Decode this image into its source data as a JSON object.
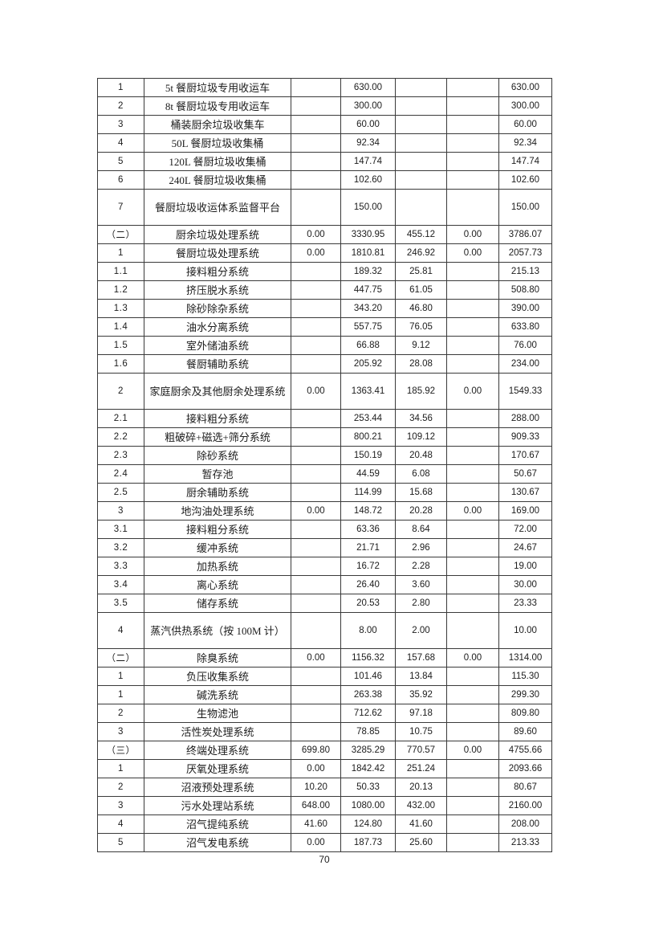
{
  "page_number": "70",
  "table": {
    "description": "cost-breakdown-table-continuation",
    "border_color": "#3a3a3a",
    "columns": [
      "no",
      "name",
      "v1",
      "v2",
      "v3",
      "v4",
      "v5"
    ],
    "rows": [
      {
        "no": "1",
        "name": "5t 餐厨垃圾专用收运车",
        "v": [
          "",
          "630.00",
          "",
          "",
          "630.00"
        ],
        "tall": false
      },
      {
        "no": "2",
        "name": "8t 餐厨垃圾专用收运车",
        "v": [
          "",
          "300.00",
          "",
          "",
          "300.00"
        ],
        "tall": false
      },
      {
        "no": "3",
        "name": "桶装厨余垃圾收集车",
        "v": [
          "",
          "60.00",
          "",
          "",
          "60.00"
        ],
        "tall": false
      },
      {
        "no": "4",
        "name": "50L 餐厨垃圾收集桶",
        "v": [
          "",
          "92.34",
          "",
          "",
          "92.34"
        ],
        "tall": false
      },
      {
        "no": "5",
        "name": "120L 餐厨垃圾收集桶",
        "v": [
          "",
          "147.74",
          "",
          "",
          "147.74"
        ],
        "tall": false
      },
      {
        "no": "6",
        "name": "240L 餐厨垃圾收集桶",
        "v": [
          "",
          "102.60",
          "",
          "",
          "102.60"
        ],
        "tall": false
      },
      {
        "no": "7",
        "name": "餐厨垃圾收运体系监督平台",
        "v": [
          "",
          "150.00",
          "",
          "",
          "150.00"
        ],
        "tall": true
      },
      {
        "no": "（二）",
        "name": "厨余垃圾处理系统",
        "v": [
          "0.00",
          "3330.95",
          "455.12",
          "0.00",
          "3786.07"
        ],
        "tall": false
      },
      {
        "no": "1",
        "name": "餐厨垃圾处理系统",
        "v": [
          "0.00",
          "1810.81",
          "246.92",
          "0.00",
          "2057.73"
        ],
        "tall": false
      },
      {
        "no": "1.1",
        "name": "接料粗分系统",
        "v": [
          "",
          "189.32",
          "25.81",
          "",
          "215.13"
        ],
        "tall": false
      },
      {
        "no": "1.2",
        "name": "挤压脱水系统",
        "v": [
          "",
          "447.75",
          "61.05",
          "",
          "508.80"
        ],
        "tall": false
      },
      {
        "no": "1.3",
        "name": "除砂除杂系统",
        "v": [
          "",
          "343.20",
          "46.80",
          "",
          "390.00"
        ],
        "tall": false
      },
      {
        "no": "1.4",
        "name": "油水分离系统",
        "v": [
          "",
          "557.75",
          "76.05",
          "",
          "633.80"
        ],
        "tall": false
      },
      {
        "no": "1.5",
        "name": "室外储油系统",
        "v": [
          "",
          "66.88",
          "9.12",
          "",
          "76.00"
        ],
        "tall": false
      },
      {
        "no": "1.6",
        "name": "餐厨辅助系统",
        "v": [
          "",
          "205.92",
          "28.08",
          "",
          "234.00"
        ],
        "tall": false
      },
      {
        "no": "2",
        "name": "家庭厨余及其他厨余处理系统",
        "v": [
          "0.00",
          "1363.41",
          "185.92",
          "0.00",
          "1549.33"
        ],
        "tall": true
      },
      {
        "no": "2.1",
        "name": "接料粗分系统",
        "v": [
          "",
          "253.44",
          "34.56",
          "",
          "288.00"
        ],
        "tall": false
      },
      {
        "no": "2.2",
        "name": "粗破碎+磁选+筛分系统",
        "v": [
          "",
          "800.21",
          "109.12",
          "",
          "909.33"
        ],
        "tall": false
      },
      {
        "no": "2.3",
        "name": "除砂系统",
        "v": [
          "",
          "150.19",
          "20.48",
          "",
          "170.67"
        ],
        "tall": false
      },
      {
        "no": "2.4",
        "name": "暂存池",
        "v": [
          "",
          "44.59",
          "6.08",
          "",
          "50.67"
        ],
        "tall": false
      },
      {
        "no": "2.5",
        "name": "厨余辅助系统",
        "v": [
          "",
          "114.99",
          "15.68",
          "",
          "130.67"
        ],
        "tall": false
      },
      {
        "no": "3",
        "name": "地沟油处理系统",
        "v": [
          "0.00",
          "148.72",
          "20.28",
          "0.00",
          "169.00"
        ],
        "tall": false
      },
      {
        "no": "3.1",
        "name": "接料粗分系统",
        "v": [
          "",
          "63.36",
          "8.64",
          "",
          "72.00"
        ],
        "tall": false
      },
      {
        "no": "3.2",
        "name": "缓冲系统",
        "v": [
          "",
          "21.71",
          "2.96",
          "",
          "24.67"
        ],
        "tall": false
      },
      {
        "no": "3.3",
        "name": "加热系统",
        "v": [
          "",
          "16.72",
          "2.28",
          "",
          "19.00"
        ],
        "tall": false
      },
      {
        "no": "3.4",
        "name": "离心系统",
        "v": [
          "",
          "26.40",
          "3.60",
          "",
          "30.00"
        ],
        "tall": false
      },
      {
        "no": "3.5",
        "name": "储存系统",
        "v": [
          "",
          "20.53",
          "2.80",
          "",
          "23.33"
        ],
        "tall": false
      },
      {
        "no": "4",
        "name": "蒸汽供热系统（按 100M 计）",
        "v": [
          "",
          "8.00",
          "2.00",
          "",
          "10.00"
        ],
        "tall": true
      },
      {
        "no": "（二）",
        "name": "除臭系统",
        "v": [
          "0.00",
          "1156.32",
          "157.68",
          "0.00",
          "1314.00"
        ],
        "tall": false
      },
      {
        "no": "1",
        "name": "负压收集系统",
        "v": [
          "",
          "101.46",
          "13.84",
          "",
          "115.30"
        ],
        "tall": false
      },
      {
        "no": "1",
        "name": "碱洗系统",
        "v": [
          "",
          "263.38",
          "35.92",
          "",
          "299.30"
        ],
        "tall": false
      },
      {
        "no": "2",
        "name": "生物滤池",
        "v": [
          "",
          "712.62",
          "97.18",
          "",
          "809.80"
        ],
        "tall": false
      },
      {
        "no": "3",
        "name": "活性炭处理系统",
        "v": [
          "",
          "78.85",
          "10.75",
          "",
          "89.60"
        ],
        "tall": false
      },
      {
        "no": "（三）",
        "name": "终端处理系统",
        "v": [
          "699.80",
          "3285.29",
          "770.57",
          "0.00",
          "4755.66"
        ],
        "tall": false
      },
      {
        "no": "1",
        "name": "厌氧处理系统",
        "v": [
          "0.00",
          "1842.42",
          "251.24",
          "",
          "2093.66"
        ],
        "tall": false
      },
      {
        "no": "2",
        "name": "沼液预处理系统",
        "v": [
          "10.20",
          "50.33",
          "20.13",
          "",
          "80.67"
        ],
        "tall": false
      },
      {
        "no": "3",
        "name": "污水处理站系统",
        "v": [
          "648.00",
          "1080.00",
          "432.00",
          "",
          "2160.00"
        ],
        "tall": false
      },
      {
        "no": "4",
        "name": "沼气提纯系统",
        "v": [
          "41.60",
          "124.80",
          "41.60",
          "",
          "208.00"
        ],
        "tall": false
      },
      {
        "no": "5",
        "name": "沼气发电系统",
        "v": [
          "0.00",
          "187.73",
          "25.60",
          "",
          "213.33"
        ],
        "tall": false
      }
    ]
  }
}
